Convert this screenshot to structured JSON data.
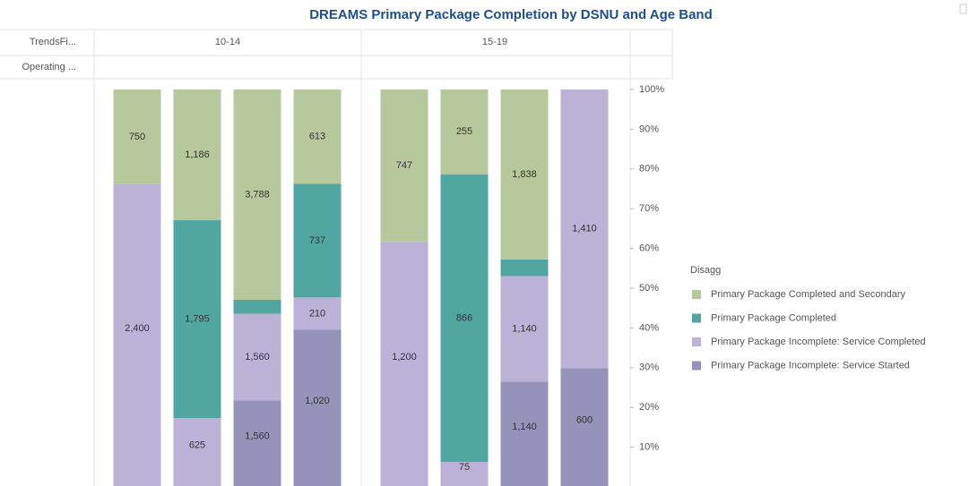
{
  "chart_data": {
    "type": "stacked_bar_100",
    "title": "DREAMS Primary Package Completion by DSNU and Age Band",
    "row_headers": [
      "TrendsFi...",
      "Operating ..."
    ],
    "groups": [
      "10-14",
      "15-19"
    ],
    "legend_title": "Disagg",
    "series": [
      {
        "name": "Primary Package Completed and Secondary",
        "color": "#b6c89c",
        "values": [
          750,
          1186,
          3788,
          613,
          747,
          255,
          1838,
          null
        ],
        "value_labels": [
          "750",
          "1,186",
          "3,788",
          "613",
          "747",
          "255",
          "1,838",
          null
        ]
      },
      {
        "name": "Primary Package Completed",
        "color": "#52a6a1",
        "values": [
          null,
          1795,
          250,
          737,
          null,
          866,
          180,
          null
        ],
        "value_labels": [
          null,
          "1,795",
          null,
          "737",
          null,
          "866",
          null,
          null
        ]
      },
      {
        "name": "Primary Package Incomplete: Service Completed",
        "color": "#bcb2d8",
        "values": [
          2400,
          625,
          1560,
          210,
          1200,
          75,
          1140,
          1410
        ],
        "value_labels": [
          "2,400",
          "625",
          "1,560",
          "210",
          "1,200",
          "75",
          "1,140",
          "1,410"
        ]
      },
      {
        "name": "Primary Package Incomplete: Service Started",
        "color": "#9692ba",
        "values": [
          null,
          null,
          1560,
          1020,
          null,
          null,
          1140,
          600
        ],
        "value_labels": [
          null,
          null,
          "1,560",
          "1,020",
          null,
          null,
          "1,140",
          "600"
        ]
      }
    ],
    "ylim": [
      0,
      100
    ],
    "yticks": [
      {
        "value": 10,
        "label": "10%"
      },
      {
        "value": 20,
        "label": "20%"
      },
      {
        "value": 30,
        "label": "30%"
      },
      {
        "value": 40,
        "label": "40%"
      },
      {
        "value": 50,
        "label": "50%"
      },
      {
        "value": 60,
        "label": "60%"
      },
      {
        "value": 70,
        "label": "70%"
      },
      {
        "value": 80,
        "label": "80%"
      },
      {
        "value": 90,
        "label": "90%"
      },
      {
        "value": 100,
        "label": "100%"
      }
    ]
  }
}
